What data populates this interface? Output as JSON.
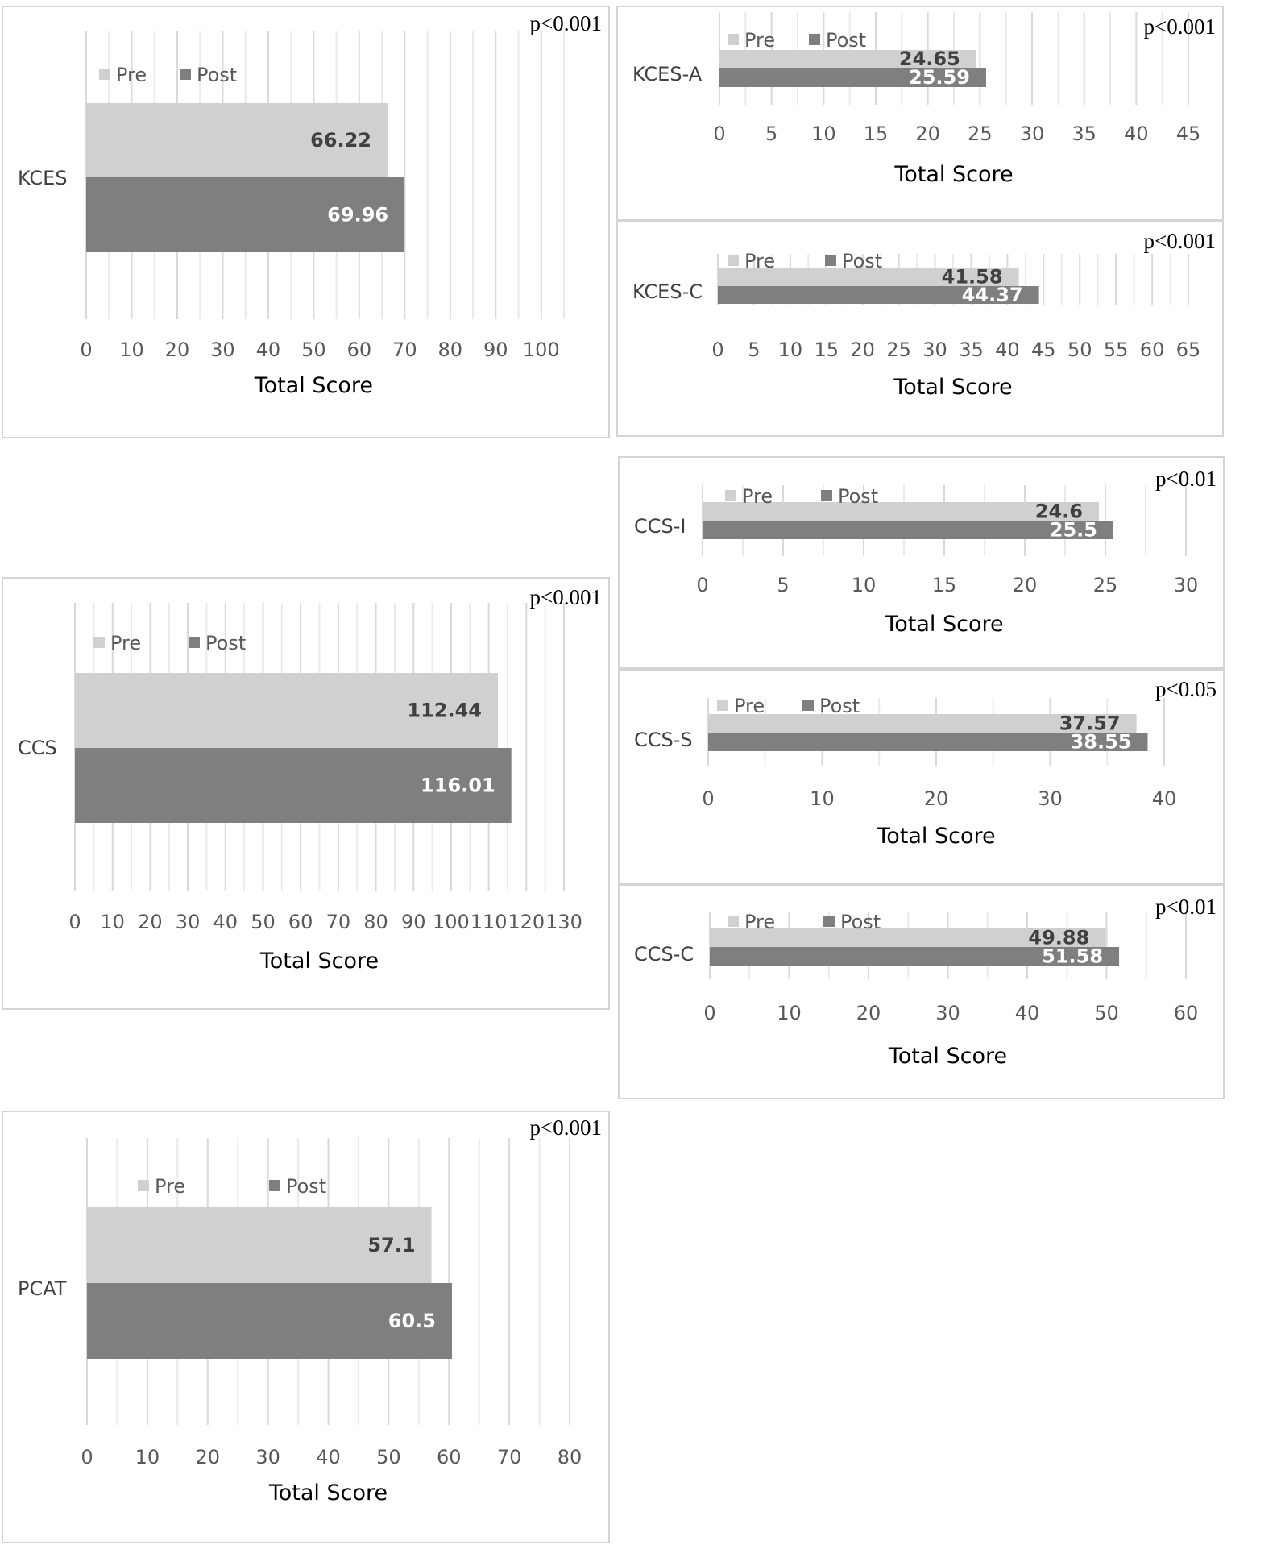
{
  "colors": {
    "pre": "#d0d0d0",
    "post": "#7f7f7f",
    "grid": "#d9d9d9",
    "pre_label": "#404040",
    "post_label": "#ffffff"
  },
  "chart_data": [
    {
      "id": "kces",
      "type": "bar",
      "orientation": "horizontal",
      "category": "KCES",
      "series": [
        {
          "name": "Pre",
          "values": [
            66.22
          ],
          "label": "66.22"
        },
        {
          "name": "Post",
          "values": [
            69.96
          ],
          "label": "69.96"
        }
      ],
      "xticks": [
        "0",
        "10",
        "20",
        "30",
        "40",
        "50",
        "60",
        "70",
        "80",
        "90",
        "100"
      ],
      "xlim": [
        0,
        105
      ],
      "xlabel": "Total Score",
      "annotation": "p<0.001",
      "grid": true
    },
    {
      "id": "kces-a",
      "type": "bar",
      "orientation": "horizontal",
      "category": "KCES-A",
      "series": [
        {
          "name": "Pre",
          "values": [
            24.65
          ],
          "label": "24.65"
        },
        {
          "name": "Post",
          "values": [
            25.59
          ],
          "label": "25.59"
        }
      ],
      "xticks": [
        "0",
        "5",
        "10",
        "15",
        "20",
        "25",
        "30",
        "35",
        "40",
        "45"
      ],
      "xlim": [
        0,
        45
      ],
      "xlabel": "Total Score",
      "annotation": "p<0.001",
      "grid": true
    },
    {
      "id": "kces-c",
      "type": "bar",
      "orientation": "horizontal",
      "category": "KCES-C",
      "series": [
        {
          "name": "Pre",
          "values": [
            41.58
          ],
          "label": "41.58"
        },
        {
          "name": "Post",
          "values": [
            44.37
          ],
          "label": "44.37"
        }
      ],
      "xticks": [
        "0",
        "5",
        "10",
        "15",
        "20",
        "25",
        "30",
        "35",
        "40",
        "45",
        "50",
        "55",
        "60",
        "65"
      ],
      "xlim": [
        0,
        65
      ],
      "xlabel": "Total Score",
      "annotation": "p<0.001",
      "grid": true
    },
    {
      "id": "ccs-i",
      "type": "bar",
      "orientation": "horizontal",
      "category": "CCS-I",
      "series": [
        {
          "name": "Pre",
          "values": [
            24.6
          ],
          "label": "24.6"
        },
        {
          "name": "Post",
          "values": [
            25.5
          ],
          "label": "25.5"
        }
      ],
      "xticks": [
        "0",
        "5",
        "10",
        "15",
        "20",
        "25",
        "30"
      ],
      "xlim": [
        0,
        30
      ],
      "xlabel": "Total Score",
      "annotation": "p<0.01",
      "grid": true
    },
    {
      "id": "ccs",
      "type": "bar",
      "orientation": "horizontal",
      "category": "CCS",
      "series": [
        {
          "name": "Pre",
          "values": [
            112.44
          ],
          "label": "112.44"
        },
        {
          "name": "Post",
          "values": [
            116.01
          ],
          "label": "116.01"
        }
      ],
      "xticks": [
        "0",
        "10",
        "20",
        "30",
        "40",
        "50",
        "60",
        "70",
        "80",
        "90",
        "100",
        "110",
        "120",
        "130"
      ],
      "xlim": [
        0,
        130
      ],
      "xlabel": "Total Score",
      "annotation": "p<0.001",
      "grid": true
    },
    {
      "id": "ccs-s",
      "type": "bar",
      "orientation": "horizontal",
      "category": "CCS-S",
      "series": [
        {
          "name": "Pre",
          "values": [
            37.57
          ],
          "label": "37.57"
        },
        {
          "name": "Post",
          "values": [
            38.55
          ],
          "label": "38.55"
        }
      ],
      "xticks": [
        "0",
        "10",
        "20",
        "30",
        "40"
      ],
      "xlim": [
        0,
        40
      ],
      "xlabel": "Total Score",
      "annotation": "p<0.05",
      "grid": true
    },
    {
      "id": "ccs-c",
      "type": "bar",
      "orientation": "horizontal",
      "category": "CCS-C",
      "series": [
        {
          "name": "Pre",
          "values": [
            49.88
          ],
          "label": "49.88"
        },
        {
          "name": "Post",
          "values": [
            51.58
          ],
          "label": "51.58"
        }
      ],
      "xticks": [
        "0",
        "10",
        "20",
        "30",
        "40",
        "50",
        "60"
      ],
      "xlim": [
        0,
        60
      ],
      "xlabel": "Total Score",
      "annotation": "p<0.01",
      "grid": true
    },
    {
      "id": "pcat",
      "type": "bar",
      "orientation": "horizontal",
      "category": "PCAT",
      "series": [
        {
          "name": "Pre",
          "values": [
            57.1
          ],
          "label": "57.1"
        },
        {
          "name": "Post",
          "values": [
            60.5
          ],
          "label": "60.5"
        }
      ],
      "xticks": [
        "0",
        "10",
        "20",
        "30",
        "40",
        "50",
        "60",
        "70",
        "80"
      ],
      "xlim": [
        0,
        80
      ],
      "xlabel": "Total Score",
      "annotation": "p<0.001",
      "grid": true
    }
  ]
}
